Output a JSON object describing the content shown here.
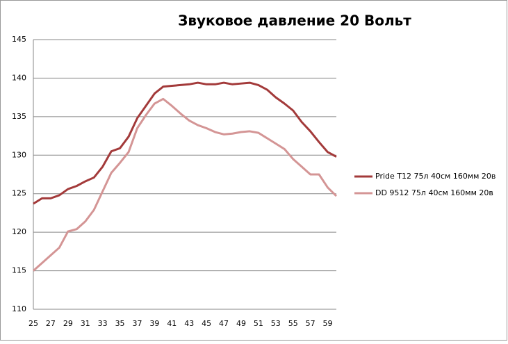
{
  "chart_data": {
    "type": "line",
    "title": "Звуковое давление 20 Вольт",
    "categories": [
      "25",
      null,
      "27",
      null,
      "29",
      null,
      "31",
      null,
      "33",
      null,
      "35",
      null,
      "37",
      null,
      "39",
      null,
      "41",
      null,
      "43",
      null,
      "45",
      null,
      "47",
      null,
      "49",
      null,
      "51",
      null,
      "53",
      null,
      "55",
      null,
      "57",
      null,
      "59",
      null
    ],
    "series": [
      {
        "name": "Pride T12 75л 40см  160мм  20в",
        "color": "#a33a3a",
        "values": [
          123.7,
          124.4,
          124.4,
          124.8,
          125.6,
          126.0,
          126.6,
          127.1,
          128.5,
          130.5,
          130.9,
          132.4,
          134.8,
          136.4,
          138.0,
          138.9,
          139.0,
          139.1,
          139.2,
          139.4,
          139.2,
          139.2,
          139.4,
          139.2,
          139.3,
          139.4,
          139.1,
          138.5,
          137.5,
          136.7,
          135.8,
          134.3,
          133.1,
          131.7,
          130.4,
          129.8
        ]
      },
      {
        "name": "DD 9512 75л 40см  160мм  20в",
        "color": "#d49595",
        "values": [
          115.0,
          116.0,
          117.0,
          118.0,
          120.1,
          120.4,
          121.4,
          122.9,
          125.3,
          127.7,
          129.0,
          130.4,
          133.5,
          135.2,
          136.7,
          137.3,
          136.4,
          135.4,
          134.5,
          133.9,
          133.5,
          133.0,
          132.7,
          132.8,
          133.0,
          133.1,
          132.9,
          132.2,
          131.5,
          130.8,
          129.5,
          128.5,
          127.5,
          127.5,
          125.8,
          124.7
        ]
      }
    ],
    "ylim": [
      110,
      145
    ],
    "yticks": [
      110,
      115,
      120,
      125,
      130,
      135,
      140,
      145
    ],
    "grid": true,
    "legend": "right"
  }
}
